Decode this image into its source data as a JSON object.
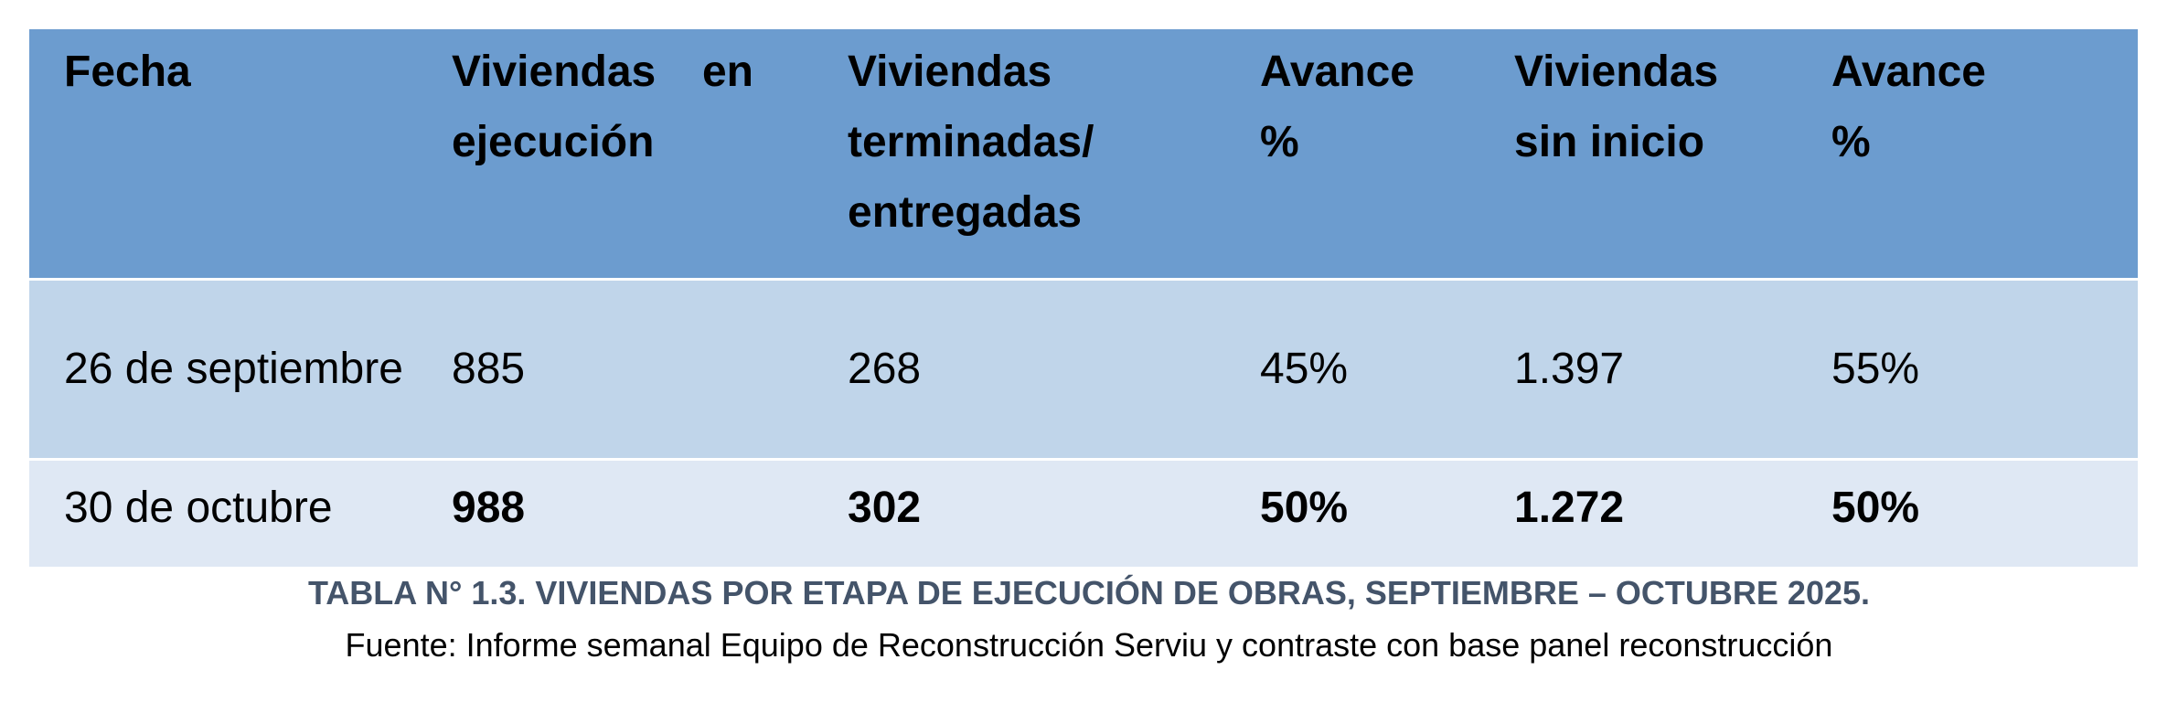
{
  "table": {
    "headers": [
      "Fecha",
      "Viviendas en ejecución",
      "Viviendas terminadas/ entregadas",
      "Avance %",
      "Viviendas sin inicio",
      "Avance %"
    ],
    "rows": [
      [
        "26 de septiembre",
        "885",
        "268",
        "45%",
        "1.397",
        "55%"
      ],
      [
        "30 de octubre",
        "988",
        "302",
        "50%",
        "1.272",
        "50%"
      ]
    ]
  },
  "caption": {
    "title": "TABLA N° 1.3. VIVIENDAS POR ETAPA DE EJECUCIÓN DE OBRAS, SEPTIEMBRE – OCTUBRE 2025.",
    "source": "Fuente: Informe semanal Equipo de Reconstrucción Serviu y contraste con base panel reconstrucción"
  },
  "colors": {
    "header_bg": "#6c9ccf",
    "row_1_bg": "#c0d5ea",
    "row_2_bg": "#dfe8f4",
    "caption_title": "#44546a"
  }
}
